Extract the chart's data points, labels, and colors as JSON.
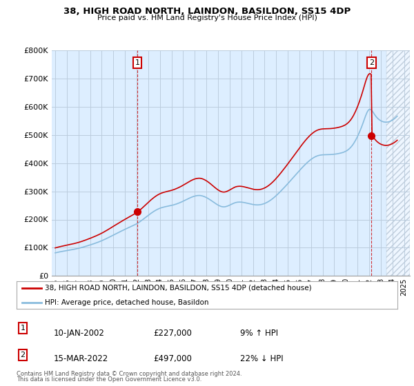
{
  "title1": "38, HIGH ROAD NORTH, LAINDON, BASILDON, SS15 4DP",
  "title2": "Price paid vs. HM Land Registry's House Price Index (HPI)",
  "legend_line1": "38, HIGH ROAD NORTH, LAINDON, BASILDON, SS15 4DP (detached house)",
  "legend_line2": "HPI: Average price, detached house, Basildon",
  "sale1_date": "10-JAN-2002",
  "sale1_price": "£227,000",
  "sale1_hpi": "9% ↑ HPI",
  "sale2_date": "15-MAR-2022",
  "sale2_price": "£497,000",
  "sale2_hpi": "22% ↓ HPI",
  "footnote1": "Contains HM Land Registry data © Crown copyright and database right 2024.",
  "footnote2": "This data is licensed under the Open Government Licence v3.0.",
  "red_color": "#cc0000",
  "blue_color": "#88bbdd",
  "chart_bg": "#ddeeff",
  "grid_color": "#bbccdd",
  "bg_color": "#ffffff",
  "hatch_color": "#aabbcc",
  "ylim": [
    0,
    800000
  ],
  "yticks": [
    0,
    100000,
    200000,
    300000,
    400000,
    500000,
    600000,
    700000,
    800000
  ],
  "ytick_labels": [
    "£0",
    "£100K",
    "£200K",
    "£300K",
    "£400K",
    "£500K",
    "£600K",
    "£700K",
    "£800K"
  ],
  "sale1_year": 2002.05,
  "sale1_y": 227000,
  "sale2_year": 2022.2,
  "sale2_y": 497000,
  "xmin": 1994.7,
  "xmax": 2025.5,
  "hatch_start": 2023.5,
  "xtick_years": [
    1995,
    1996,
    1997,
    1998,
    1999,
    2000,
    2001,
    2002,
    2003,
    2004,
    2005,
    2006,
    2007,
    2008,
    2009,
    2010,
    2011,
    2012,
    2013,
    2014,
    2015,
    2016,
    2017,
    2018,
    2019,
    2020,
    2021,
    2022,
    2023,
    2024,
    2025
  ]
}
